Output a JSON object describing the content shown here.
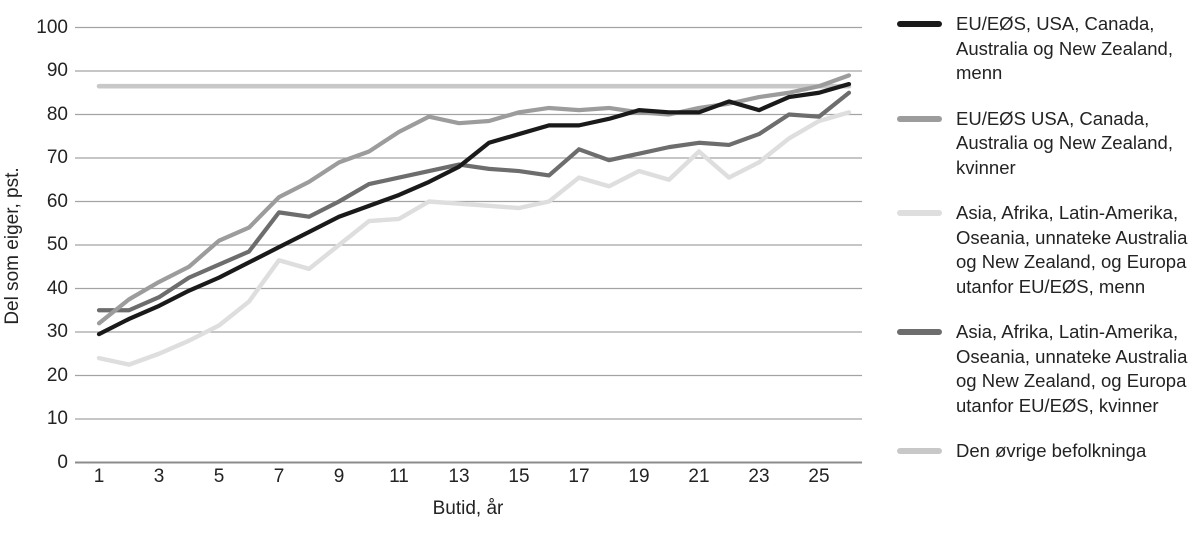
{
  "chart_data": {
    "type": "line",
    "title": "",
    "xlabel": "Butid, år",
    "ylabel": "Del som eiger, pst.",
    "x": [
      1,
      2,
      3,
      4,
      5,
      6,
      7,
      8,
      9,
      10,
      11,
      12,
      13,
      14,
      15,
      16,
      17,
      18,
      19,
      20,
      21,
      22,
      23,
      24,
      25,
      26
    ],
    "x_ticks": [
      1,
      3,
      5,
      7,
      9,
      11,
      13,
      15,
      17,
      19,
      21,
      23,
      25
    ],
    "y_ticks": [
      0,
      10,
      20,
      30,
      40,
      50,
      60,
      70,
      80,
      90,
      100
    ],
    "ylim": [
      0,
      100
    ],
    "grid": "horizontal",
    "legend_position": "right",
    "colors": {
      "gridline": "#a3a3a3",
      "zero_line": "#8c8c8c",
      "text": "#232323"
    },
    "series": [
      {
        "key": "eu_eos_menn",
        "name": "EU/EØS, USA, Canada, Australia og New Zealand, menn",
        "color": "#1a1a1a",
        "width": 4.2,
        "values": [
          29.5,
          33,
          36,
          39.5,
          42.5,
          46,
          49.5,
          53,
          56.5,
          59,
          61.5,
          64.5,
          68,
          73.5,
          75.5,
          77.5,
          77.5,
          79,
          81,
          80.5,
          80.5,
          83,
          81,
          84,
          85,
          87
        ]
      },
      {
        "key": "eu_eos_kvinner",
        "name": "EU/EØS USA, Canada, Australia og New Zealand, kvinner",
        "color": "#9c9c9c",
        "width": 4.2,
        "values": [
          32,
          37.5,
          41.5,
          45,
          51,
          54,
          61,
          64.5,
          69,
          71.5,
          76,
          79.5,
          78,
          78.5,
          80.5,
          81.5,
          81,
          81.5,
          80.5,
          80,
          81.5,
          82.5,
          84,
          85,
          86.5,
          89
        ]
      },
      {
        "key": "asia_afrika_menn",
        "name": "Asia, Afrika, Latin-Amerika, Oseania, unnateke Australia og New Zealand, og Europa utanfor EU/EØS, menn",
        "color": "#dedede",
        "width": 4.4,
        "values": [
          24,
          22.5,
          25,
          28,
          31.5,
          37,
          46.5,
          44.5,
          50,
          55.5,
          56,
          60,
          59.5,
          59,
          58.5,
          60,
          65.5,
          63.5,
          67,
          65,
          71.5,
          65.5,
          69,
          74.5,
          78.5,
          80.5
        ]
      },
      {
        "key": "asia_afrika_kvinner",
        "name": "Asia, Afrika, Latin-Amerika, Oseania, unnateke Australia og New Zealand, og Europa utanfor EU/EØS, kvinner",
        "color": "#6d6d6d",
        "width": 4.2,
        "values": [
          35,
          35,
          38,
          42.5,
          45.5,
          48.5,
          57.5,
          56.5,
          60,
          64,
          65.5,
          67,
          68.5,
          67.5,
          67,
          66,
          72,
          69.5,
          71,
          72.5,
          73.5,
          73,
          75.5,
          80,
          79.5,
          85
        ]
      },
      {
        "key": "ovrige_befolkninga",
        "name": "Den øvrige befolkninga",
        "color": "#c8c8c8",
        "width": 4.6,
        "values": [
          86.5,
          86.5,
          86.5,
          86.5,
          86.5,
          86.5,
          86.5,
          86.5,
          86.5,
          86.5,
          86.5,
          86.5,
          86.5,
          86.5,
          86.5,
          86.5,
          86.5,
          86.5,
          86.5,
          86.5,
          86.5,
          86.5,
          86.5,
          86.5,
          86.5,
          86.5
        ]
      }
    ]
  }
}
